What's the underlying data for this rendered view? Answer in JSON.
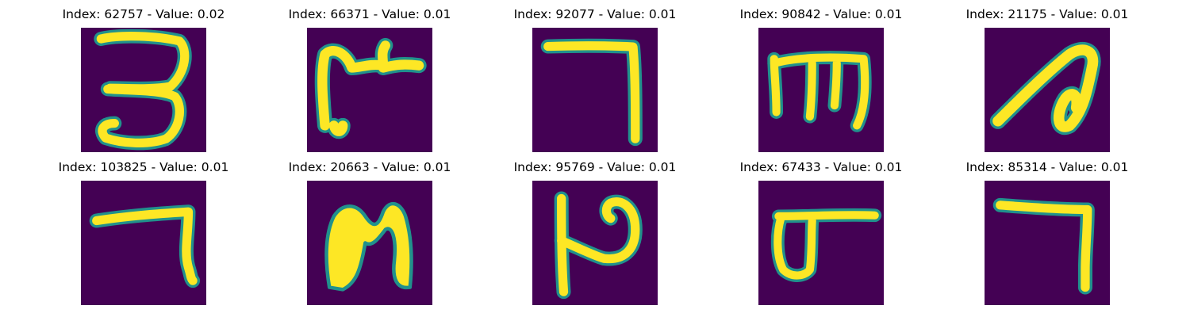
{
  "figure": {
    "panels": [
      {
        "title": "Index: 62757 - Value: 0.02",
        "glyph": "digit-three-glyph"
      },
      {
        "title": "Index: 66371 - Value: 0.01",
        "glyph": "bengali-letter-glyph"
      },
      {
        "title": "Index: 92077 - Value: 0.01",
        "glyph": "digit-seven-glyph"
      },
      {
        "title": "Index: 90842 - Value: 0.01",
        "glyph": "letter-m-glyph"
      },
      {
        "title": "Index: 21175 - Value: 0.01",
        "glyph": "loop-stroke-glyph"
      },
      {
        "title": "Index: 103825 - Value: 0.01",
        "glyph": "digit-seven-glyph"
      },
      {
        "title": "Index: 20663 - Value: 0.01",
        "glyph": "arch-glyph"
      },
      {
        "title": "Index: 95769 - Value: 0.01",
        "glyph": "letter-p-glyph"
      },
      {
        "title": "Index: 67433 - Value: 0.01",
        "glyph": "bengali-letter-glyph"
      },
      {
        "title": "Index: 85314 - Value: 0.01",
        "glyph": "digit-seven-glyph"
      }
    ],
    "colors": {
      "background": "#440154",
      "stroke": "#fde725",
      "edge": "#21918c"
    }
  }
}
